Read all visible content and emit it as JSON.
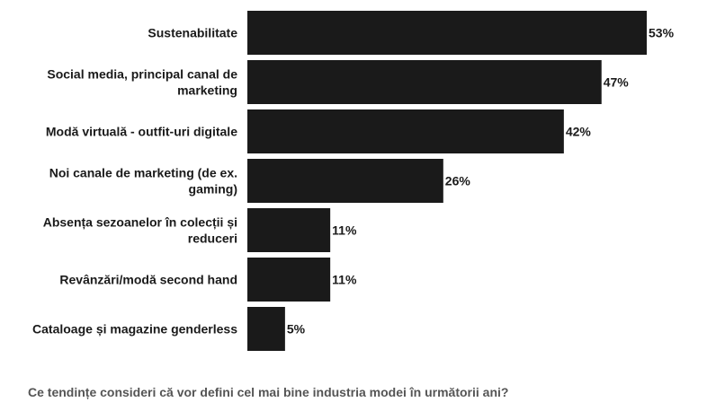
{
  "chart_data": {
    "type": "bar",
    "orientation": "horizontal",
    "categories": [
      [
        "Sustenabilitate"
      ],
      [
        "Social media, principal canal de",
        "marketing"
      ],
      [
        "Modă virtuală - outfit-uri digitale"
      ],
      [
        "Noi canale de marketing (de ex.",
        "gaming)"
      ],
      [
        "Absența sezoanelor în colecții și",
        "reduceri"
      ],
      [
        "Revânzări/modă second hand"
      ],
      [
        "Cataloage și magazine genderless"
      ]
    ],
    "values": [
      53,
      47,
      42,
      26,
      11,
      11,
      5
    ],
    "value_labels": [
      "53%",
      "47%",
      "42%",
      "26%",
      "11%",
      "11%",
      "5%"
    ],
    "xlim": [
      0,
      53
    ],
    "bar_color": "#1a1a1a",
    "grid": false,
    "legend": "none"
  },
  "caption": "Ce tendințe consideri că vor defini cel mai bine industria modei în următorii ani?"
}
